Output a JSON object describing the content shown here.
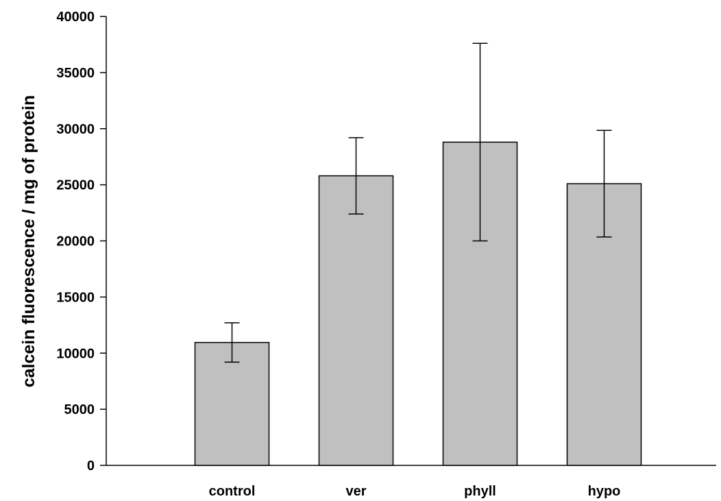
{
  "chart_data": {
    "type": "bar",
    "title": "",
    "xlabel": "",
    "ylabel": "calcein fluorescence / mg of protein",
    "categories": [
      "control",
      "ver",
      "phyll",
      "hypo"
    ],
    "values": [
      10950,
      25800,
      28800,
      25100
    ],
    "errors": [
      1750,
      3400,
      8800,
      4750
    ],
    "ylim": [
      0,
      40000
    ],
    "yticks": [
      0,
      5000,
      10000,
      15000,
      20000,
      25000,
      30000,
      35000,
      40000
    ],
    "ytick_labels": [
      "0",
      "5000",
      "10000",
      "15000",
      "20000",
      "25000",
      "30000",
      "35000",
      "40000"
    ],
    "grid": false,
    "bar_color": "#c0c0c0",
    "edge_color": "#000000"
  }
}
